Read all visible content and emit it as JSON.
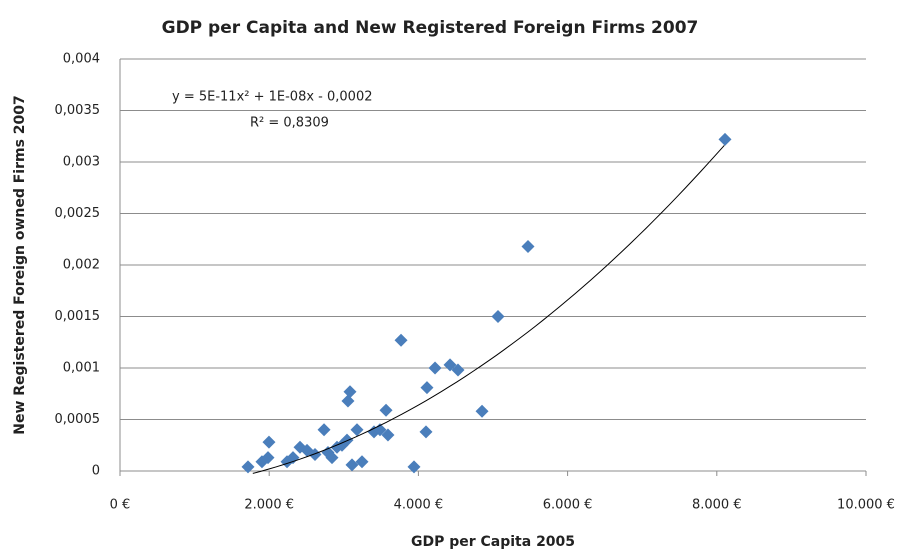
{
  "chart_data": {
    "type": "scatter",
    "title": "GDP per Capita and New Registered Foreign Firms 2007",
    "x_label": "GDP per Capita 2005",
    "y_label": "New Registered Foreign owned Firms 2007",
    "color": "#4a7ebb",
    "x": [
      1716,
      1903,
      1984,
      1997,
      2239,
      2319,
      2413,
      2507,
      2614,
      2735,
      2788,
      2842,
      2909,
      2976,
      3043,
      3056,
      3083,
      3110,
      3177,
      3244,
      3405,
      3485,
      3566,
      3592,
      3767,
      3941,
      4102,
      4115,
      4223,
      4424,
      4531,
      4853,
      5067,
      5469,
      8110
    ],
    "values": [
      4e-05,
      9e-05,
      0.00013,
      0.00028,
      9e-05,
      0.00013,
      0.00023,
      0.0002,
      0.00016,
      0.0004,
      0.00018,
      0.00013,
      0.00023,
      0.00025,
      0.0003,
      0.00068,
      0.00077,
      6e-05,
      0.0004,
      9e-05,
      0.00038,
      0.0004,
      0.00059,
      0.00035,
      0.00127,
      4e-05,
      0.00038,
      0.00081,
      0.001,
      0.00103,
      0.00098,
      0.00058,
      0.0015,
      0.00218,
      0.00322
    ],
    "trendline": {
      "equation": "y = 5E-11x² + 1E-08x - 0,0002",
      "r_squared": "R² = 0,8309",
      "coefficients": [
        5e-11,
        1e-08,
        -0.0002
      ],
      "x_range": [
        1780,
        8100
      ]
    },
    "xlim": [
      0,
      10000
    ],
    "xticks": [
      {
        "value": 0,
        "label": "0 €"
      },
      {
        "value": 2000,
        "label": "2.000 €"
      },
      {
        "value": 4000,
        "label": "4.000 €"
      },
      {
        "value": 6000,
        "label": "6.000 €"
      },
      {
        "value": 8000,
        "label": "8.000 €"
      },
      {
        "value": 10000,
        "label": "10.000 €"
      }
    ],
    "ylim": [
      0,
      0.004
    ],
    "yticks": [
      0,
      {
        "value": 0.0005,
        "label": "0,0005"
      },
      {
        "value": 0.001,
        "label": "0,001"
      },
      {
        "value": 0.0015,
        "label": "0,0015"
      },
      {
        "value": 0.002,
        "label": "0,002"
      },
      {
        "value": 0.0025,
        "label": "0,0025"
      },
      {
        "value": 0.003,
        "label": "0,003"
      },
      {
        "value": 0.0035,
        "label": "0,0035"
      },
      {
        "value": 0.004,
        "label": "0,004"
      }
    ],
    "grid": true
  }
}
